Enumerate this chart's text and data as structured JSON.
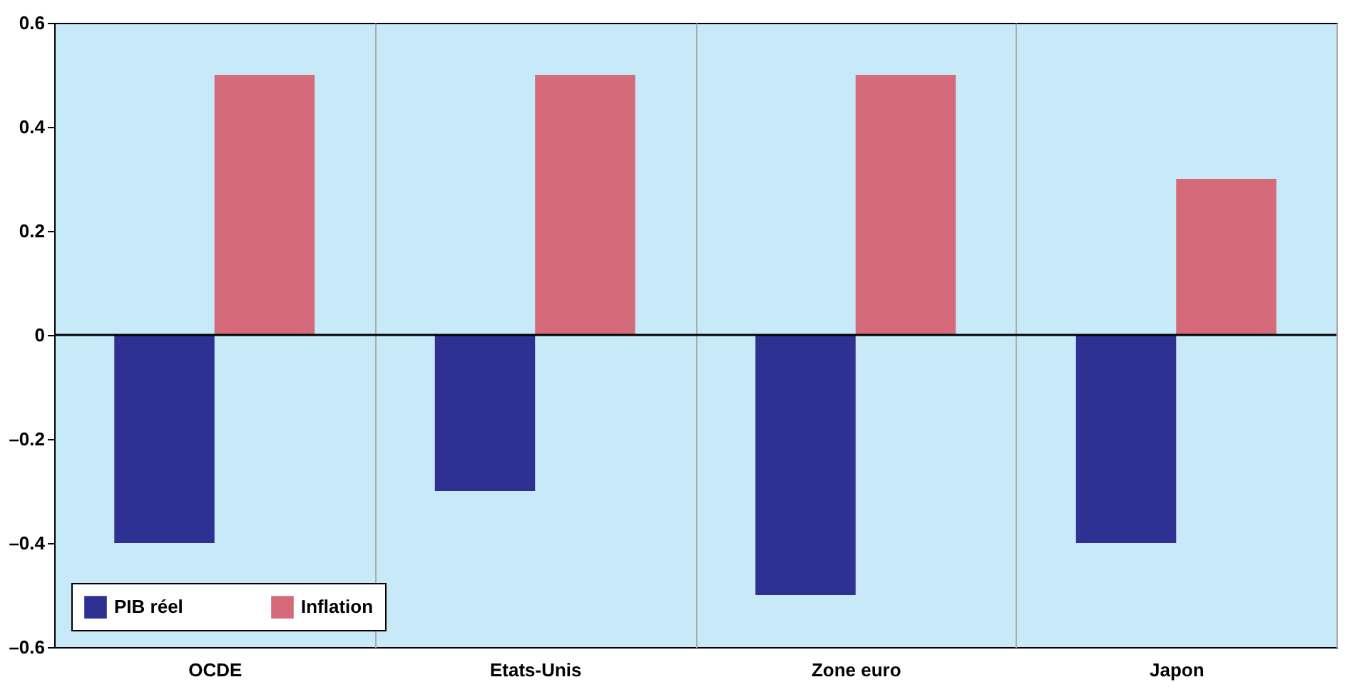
{
  "chart_data": {
    "type": "bar",
    "categories": [
      "OCDE",
      "Etats-Unis",
      "Zone euro",
      "Japon"
    ],
    "series": [
      {
        "name": "PIB réel",
        "color": "#2e3192",
        "values": [
          -0.4,
          -0.3,
          -0.5,
          -0.4
        ]
      },
      {
        "name": "Inflation",
        "color": "#d46a7a",
        "values": [
          0.5,
          0.5,
          0.5,
          0.3
        ]
      }
    ],
    "ylim": [
      -0.6,
      0.6
    ],
    "yticks": [
      {
        "value": -0.6,
        "label": "–0.6"
      },
      {
        "value": -0.4,
        "label": "–0.4"
      },
      {
        "value": -0.2,
        "label": "–0.2"
      },
      0,
      0.2,
      0.4,
      0.6
    ],
    "ref_lines": [
      {
        "axis": "y",
        "value": 0,
        "color": "#000000"
      }
    ],
    "grid": "x",
    "legend": "bottom left"
  }
}
